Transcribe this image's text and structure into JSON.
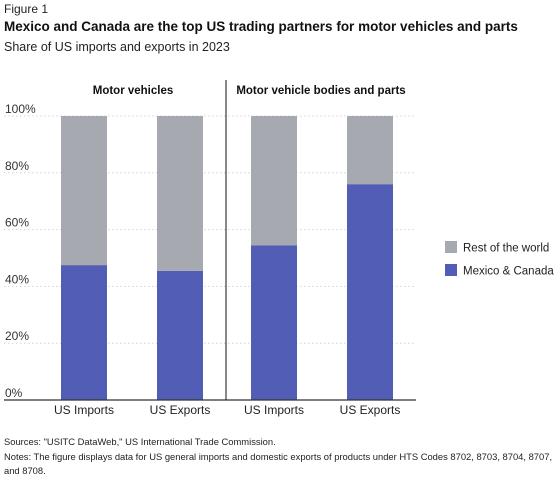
{
  "figure_label": "Figure 1",
  "title": "Mexico and Canada are the top US trading partners for motor vehicles and parts",
  "subtitle": "Share of US imports and exports in 2023",
  "notes": {
    "source": "Sources: \"USITC DataWeb,\" US International Trade Commission.",
    "note": "Notes: The figure displays data for US general imports and domestic exports of products under HTS Codes 8702, 8703, 8704, 8707, and 8708."
  },
  "colors": {
    "rest": "#a6aab0",
    "mexico_canada": "#525db5"
  },
  "chart_data": {
    "type": "bar",
    "stacked": true,
    "panels": [
      "Motor vehicles",
      "Motor vehicle bodies and parts"
    ],
    "categories": [
      "US Imports",
      "US Exports",
      "US Imports",
      "US Exports"
    ],
    "series": [
      {
        "name": "Mexico & Canada",
        "values": [
          47.5,
          45.5,
          54.5,
          76
        ]
      },
      {
        "name": "Rest of the world",
        "values": [
          52.5,
          54.5,
          45.5,
          24
        ]
      }
    ],
    "ylim": [
      0,
      100
    ],
    "yticks": [
      "0%",
      "20%",
      "40%",
      "60%",
      "80%",
      "100%"
    ],
    "grid": true,
    "legend_position": "right"
  }
}
